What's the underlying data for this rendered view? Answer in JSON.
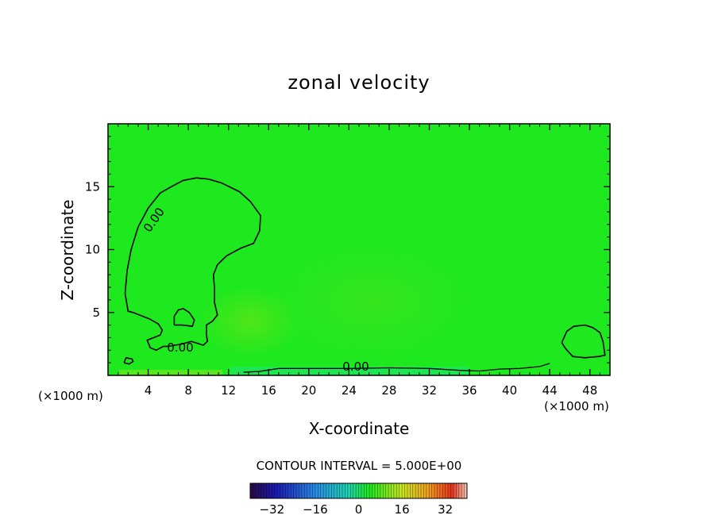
{
  "chart_data": {
    "type": "heatmap",
    "title": "zonal velocity",
    "xlabel": "X-coordinate",
    "ylabel": "Z-coordinate",
    "x_unit_left": "(×1000 m)",
    "x_unit_right": "(×1000 m)",
    "xlim": [
      0,
      50
    ],
    "ylim": [
      0,
      20
    ],
    "x_ticks": [
      4,
      8,
      12,
      16,
      20,
      24,
      28,
      32,
      36,
      40,
      44,
      48
    ],
    "y_ticks": [
      5,
      10,
      15
    ],
    "contour_labels": [
      "0.00",
      "0.00",
      "0.00"
    ],
    "contour_interval_text": "CONTOUR INTERVAL = 5.000E+00",
    "colorbar": {
      "range": [
        -40,
        40
      ],
      "ticks": [
        -32,
        -16,
        0,
        16,
        32
      ]
    },
    "field_color": "#1ee81e",
    "contours": [
      [
        [
          1.7,
          6.5
        ],
        [
          1.9,
          8.3
        ],
        [
          2.3,
          10.0
        ],
        [
          3.0,
          11.8
        ],
        [
          4.0,
          13.3
        ],
        [
          5.2,
          14.5
        ],
        [
          6.3,
          15.0
        ],
        [
          7.5,
          15.5
        ],
        [
          8.8,
          15.7
        ],
        [
          10.0,
          15.6
        ],
        [
          11.3,
          15.3
        ],
        [
          13.1,
          14.6
        ],
        [
          14.2,
          13.8
        ],
        [
          15.2,
          12.7
        ],
        [
          15.1,
          11.5
        ],
        [
          14.5,
          10.5
        ],
        [
          13.2,
          10.1
        ],
        [
          11.8,
          9.5
        ],
        [
          10.9,
          8.8
        ],
        [
          10.5,
          8.0
        ],
        [
          10.6,
          7.0
        ],
        [
          10.6,
          5.8
        ],
        [
          10.9,
          4.8
        ],
        [
          10.4,
          4.3
        ],
        [
          9.8,
          4.0
        ],
        [
          9.8,
          3.3
        ],
        [
          9.9,
          2.7
        ],
        [
          9.5,
          2.4
        ],
        [
          9.1,
          2.5
        ],
        [
          8.3,
          2.7
        ],
        [
          7.4,
          2.5
        ],
        [
          6.0,
          2.3
        ],
        [
          5.5,
          2.3
        ],
        [
          4.8,
          2.0
        ],
        [
          4.2,
          2.2
        ],
        [
          3.9,
          2.8
        ],
        [
          5.2,
          3.2
        ],
        [
          5.4,
          3.6
        ],
        [
          5.0,
          4.1
        ],
        [
          4.1,
          4.5
        ],
        [
          2.5,
          5.0
        ],
        [
          2.0,
          5.1
        ],
        [
          1.7,
          6.5
        ]
      ],
      [
        [
          6.6,
          4.0
        ],
        [
          7.4,
          4.0
        ],
        [
          8.4,
          3.9
        ],
        [
          8.6,
          4.4
        ],
        [
          8.1,
          5.0
        ],
        [
          7.5,
          5.3
        ],
        [
          7.0,
          5.2
        ],
        [
          6.6,
          4.7
        ],
        [
          6.6,
          4.0
        ]
      ],
      [
        [
          45.2,
          2.6
        ],
        [
          45.6,
          2.1
        ],
        [
          46.3,
          1.5
        ],
        [
          47.5,
          1.4
        ],
        [
          48.9,
          1.5
        ],
        [
          49.5,
          1.6
        ],
        [
          49.3,
          2.7
        ],
        [
          49.0,
          3.4
        ],
        [
          48.3,
          3.8
        ],
        [
          47.5,
          4.0
        ],
        [
          46.4,
          3.9
        ],
        [
          45.7,
          3.5
        ],
        [
          45.2,
          2.6
        ]
      ],
      [
        [
          1.6,
          1.0
        ],
        [
          2.1,
          0.9
        ],
        [
          2.5,
          1.1
        ],
        [
          2.4,
          1.3
        ],
        [
          1.8,
          1.4
        ],
        [
          1.6,
          1.0
        ]
      ]
    ]
  }
}
